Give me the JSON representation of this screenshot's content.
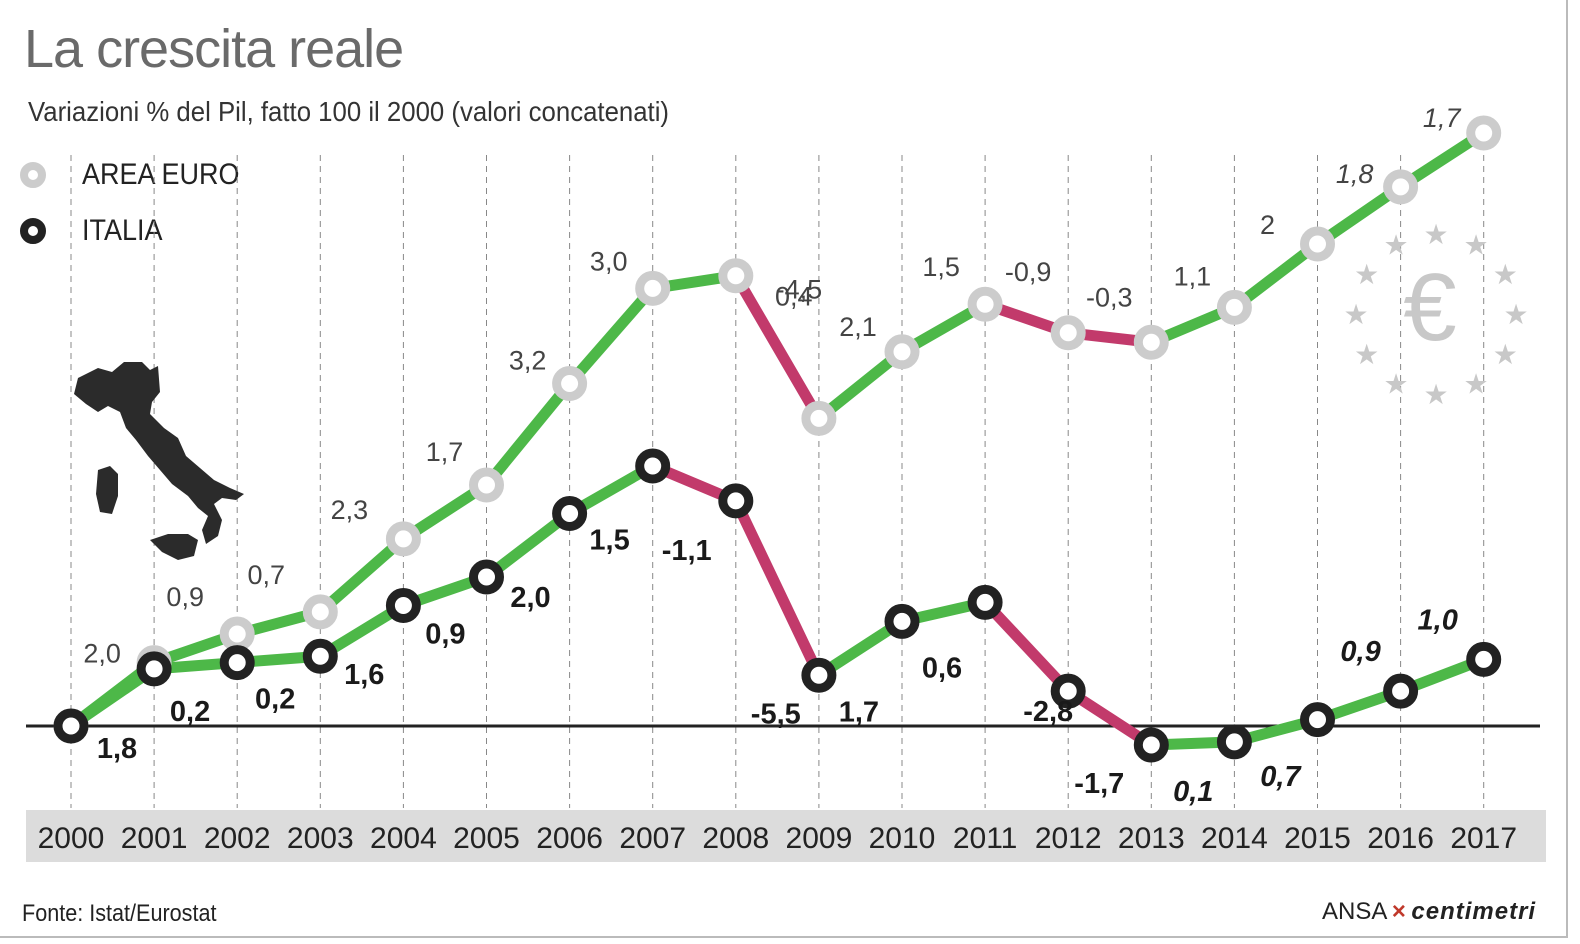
{
  "title": "La crescita reale",
  "subtitle": "Variazioni  % del Pil, fatto 100 il 2000 (valori concatenati)",
  "legend": [
    {
      "label": "AREA EURO",
      "color": "#cccccc"
    },
    {
      "label": "ITALIA",
      "color": "#222222"
    }
  ],
  "source": "Fonte: Istat/Eurostat",
  "credit": {
    "agency": "ANSA",
    "brand": "centimetri"
  },
  "colors": {
    "growth": "#4db848",
    "decline": "#c23a6b",
    "euro_marker": "#cccccc",
    "italy_marker": "#222222",
    "axis_band": "#dcdcdc"
  },
  "icons": [
    "italy-map-icon",
    "euro-stars-icon"
  ],
  "chart_data": {
    "type": "line",
    "x": [
      "2000",
      "2001",
      "2002",
      "2003",
      "2004",
      "2005",
      "2006",
      "2007",
      "2008",
      "2009",
      "2010",
      "2011",
      "2012",
      "2013",
      "2014",
      "2015",
      "2016",
      "2017"
    ],
    "series": [
      {
        "name": "AREA EURO",
        "index": [
          100,
          102.0,
          102.9,
          103.6,
          105.9,
          107.6,
          110.8,
          113.8,
          114.2,
          109.7,
          111.8,
          113.3,
          112.4,
          112.1,
          113.2,
          115.2,
          117.0,
          118.7
        ],
        "labels": [
          "",
          "2,0",
          "0,9",
          "0,7",
          "2,3",
          "1,7",
          "3,2",
          "3,0",
          "0,4",
          "-4,5",
          "2,1",
          "1,5",
          "-0,9",
          "-0,3",
          "1,1",
          "2",
          "1,8",
          "1,7"
        ]
      },
      {
        "name": "ITALIA",
        "index": [
          100,
          101.8,
          102.0,
          102.2,
          103.8,
          104.7,
          106.7,
          108.2,
          107.1,
          101.6,
          103.3,
          103.9,
          101.1,
          99.4,
          99.5,
          100.2,
          101.1,
          102.1
        ],
        "labels": [
          "1,8",
          "0,2",
          "0,2",
          "1,6",
          "0,9",
          "2,0",
          "1,5",
          "-1,1",
          "-5,5",
          "1,7",
          "0,6",
          "-2,8",
          "-1,7",
          "0,1",
          "0,7",
          "0,9",
          "1,0",
          ""
        ]
      }
    ],
    "ylim": [
      100,
      118.7
    ],
    "grid": true,
    "legend_position": "top-left"
  }
}
